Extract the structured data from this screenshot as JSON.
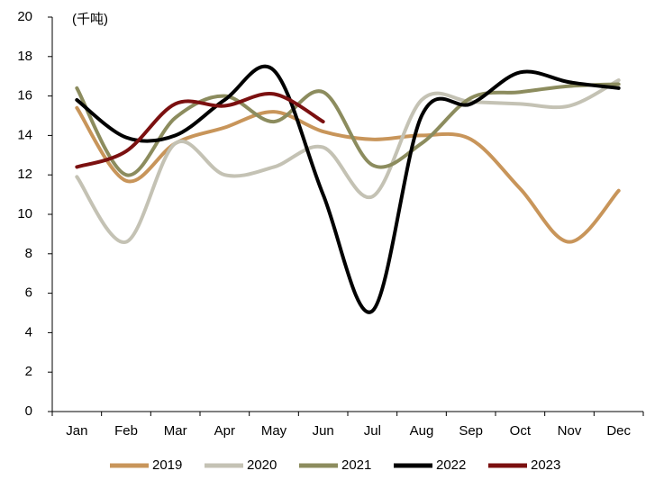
{
  "chart_data": {
    "type": "line",
    "unit_label": "(千吨)",
    "categories": [
      "Jan",
      "Feb",
      "Mar",
      "Apr",
      "May",
      "Jun",
      "Jul",
      "Aug",
      "Sep",
      "Oct",
      "Nov",
      "Dec"
    ],
    "series": [
      {
        "name": "2019",
        "color": "#C8955A",
        "values": [
          15.4,
          11.7,
          13.6,
          14.4,
          15.2,
          14.2,
          13.8,
          14.0,
          13.8,
          11.3,
          8.6,
          11.2
        ]
      },
      {
        "name": "2020",
        "color": "#C4C2B4",
        "values": [
          11.9,
          8.6,
          13.6,
          12.0,
          12.4,
          13.4,
          10.9,
          15.8,
          15.7,
          15.6,
          15.5,
          16.8
        ]
      },
      {
        "name": "2021",
        "color": "#8C8C5E",
        "values": [
          16.4,
          12.0,
          14.9,
          16.0,
          14.7,
          16.2,
          12.5,
          13.6,
          15.9,
          16.2,
          16.5,
          16.6
        ]
      },
      {
        "name": "2022",
        "color": "#000000",
        "values": [
          15.8,
          13.9,
          14.0,
          15.8,
          17.3,
          11.0,
          5.1,
          15.0,
          15.6,
          17.2,
          16.7,
          16.4
        ]
      },
      {
        "name": "2023",
        "color": "#7B1010",
        "values": [
          12.4,
          13.2,
          15.6,
          15.5,
          16.1,
          14.7,
          null,
          null,
          null,
          null,
          null,
          null
        ]
      }
    ],
    "ylim": [
      0,
      20
    ],
    "yticks": [
      0,
      2,
      4,
      6,
      8,
      10,
      12,
      14,
      16,
      18,
      20
    ],
    "grid": false,
    "smooth": true,
    "legend": "bottom"
  }
}
